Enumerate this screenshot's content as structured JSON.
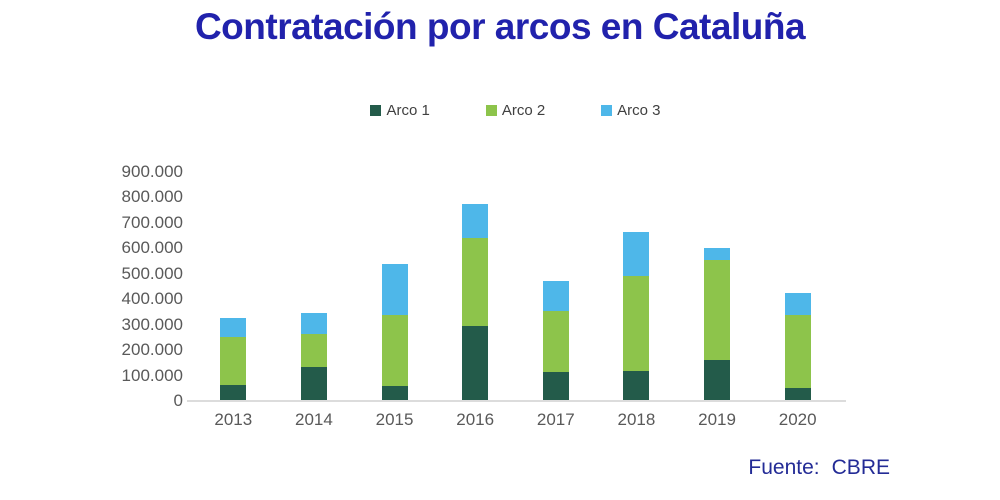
{
  "title": {
    "text": "Contratación por arcos en Cataluña",
    "color": "#2122AC"
  },
  "source": {
    "label": "Fuente:",
    "value": "CBRE",
    "color": "#232B96"
  },
  "colors": {
    "axis_text": "#595959",
    "legend_text": "#404040",
    "baseline": "#DCDCDC",
    "background": "#FFFFFF"
  },
  "chart_data": {
    "type": "bar",
    "stacked": true,
    "title": "Contratación por arcos en Cataluña",
    "xlabel": "",
    "ylabel": "",
    "categories": [
      "2013",
      "2014",
      "2015",
      "2016",
      "2017",
      "2018",
      "2019",
      "2020"
    ],
    "series": [
      {
        "name": "Arco 1",
        "color": "#235B4A",
        "values": [
          65000,
          135000,
          60000,
          295000,
          115000,
          120000,
          160000,
          50000
        ]
      },
      {
        "name": "Arco 2",
        "color": "#8DC44B",
        "values": [
          185000,
          130000,
          280000,
          345000,
          240000,
          370000,
          395000,
          290000
        ]
      },
      {
        "name": "Arco 3",
        "color": "#4EB7E9",
        "values": [
          75000,
          80000,
          200000,
          135000,
          115000,
          175000,
          45000,
          85000
        ]
      }
    ],
    "totals": [
      325000,
      345000,
      540000,
      775000,
      470000,
      665000,
      600000,
      425000
    ],
    "ylim": [
      0,
      900000
    ],
    "ytick_step": 100000,
    "ytick_labels": [
      "0",
      "100.000",
      "200.000",
      "300.000",
      "400.000",
      "500.000",
      "600.000",
      "700.000",
      "800.000",
      "900.000"
    ],
    "legend_position": "top",
    "legend_entries": [
      "Arco 1",
      "Arco 2",
      "Arco 3"
    ],
    "grid": false
  }
}
